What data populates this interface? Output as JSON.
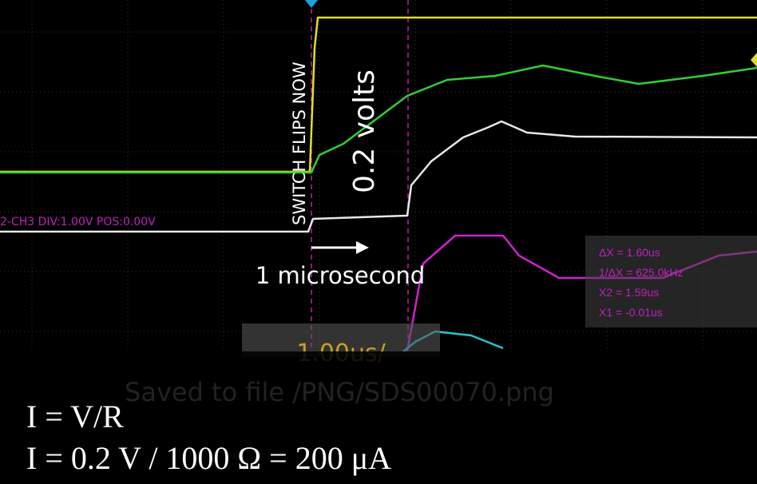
{
  "overlay": {
    "switch_label": "SWITCH FLIPS NOW",
    "voltage_label": "0.2 volts",
    "time_label": "1 microsecond"
  },
  "scope": {
    "channel_info": "2-CH3  DIV:1.00V  POS:0.00V",
    "cursor_readout": [
      "ΔX = 1.60us",
      "1/ΔX = 625.0kHz",
      "X2 = 1.59us",
      "X1 = -0.01us"
    ],
    "timebase": "1.00us/",
    "save_message": "Saved to file /PNG/SDS00070.png"
  },
  "equations": [
    "I = V/R",
    "I = 0.2 V / 1000 Ω = 200 μA"
  ]
}
